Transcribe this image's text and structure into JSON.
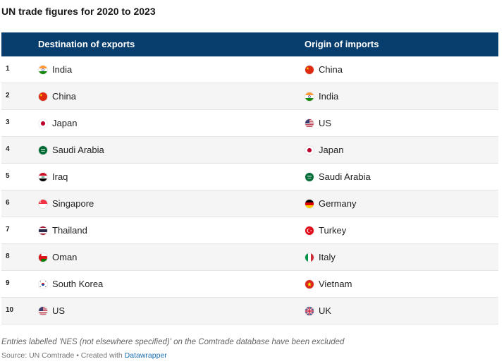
{
  "title": "UN trade figures for 2020 to 2023",
  "headers": {
    "exports": "Destination of exports",
    "imports": "Origin of imports"
  },
  "rows": [
    {
      "rank": "1",
      "export": "India",
      "export_flag": "india-flag-icon",
      "import": "China",
      "import_flag": "china-flag-icon"
    },
    {
      "rank": "2",
      "export": "China",
      "export_flag": "china-flag-icon",
      "import": "India",
      "import_flag": "india-flag-icon"
    },
    {
      "rank": "3",
      "export": "Japan",
      "export_flag": "japan-flag-icon",
      "import": "US",
      "import_flag": "us-flag-icon"
    },
    {
      "rank": "4",
      "export": "Saudi Arabia",
      "export_flag": "saudi-arabia-flag-icon",
      "import": "Japan",
      "import_flag": "japan-flag-icon"
    },
    {
      "rank": "5",
      "export": "Iraq",
      "export_flag": "iraq-flag-icon",
      "import": "Saudi Arabia",
      "import_flag": "saudi-arabia-flag-icon"
    },
    {
      "rank": "6",
      "export": "Singapore",
      "export_flag": "singapore-flag-icon",
      "import": "Germany",
      "import_flag": "germany-flag-icon"
    },
    {
      "rank": "7",
      "export": "Thailand",
      "export_flag": "thailand-flag-icon",
      "import": "Turkey",
      "import_flag": "turkey-flag-icon"
    },
    {
      "rank": "8",
      "export": "Oman",
      "export_flag": "oman-flag-icon",
      "import": "Italy",
      "import_flag": "italy-flag-icon"
    },
    {
      "rank": "9",
      "export": "South Korea",
      "export_flag": "south-korea-flag-icon",
      "import": "Vietnam",
      "import_flag": "vietnam-flag-icon"
    },
    {
      "rank": "10",
      "export": "US",
      "export_flag": "us-flag-icon",
      "import": "UK",
      "import_flag": "uk-flag-icon"
    }
  ],
  "footnote": "Entries labelled 'NES (not elsewhere specified)' on the Comtrade database have been excluded",
  "source": {
    "prefix": "Source: UN Comtrade • Created with ",
    "link": "Datawrapper"
  },
  "colors": {
    "header_bg": "#073e6d",
    "alt_row_bg": "#f5f5f5",
    "link": "#1a6fb0"
  }
}
